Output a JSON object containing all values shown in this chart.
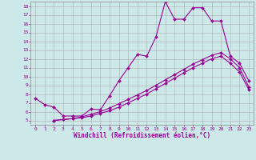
{
  "xlabel": "Windchill (Refroidissement éolien,°C)",
  "bg_color": "#cce8e8",
  "line_color": "#990099",
  "grid_color": "#aaaaaa",
  "xlim": [
    -0.5,
    23.5
  ],
  "ylim": [
    4.5,
    18.5
  ],
  "yticks": [
    5,
    6,
    7,
    8,
    9,
    10,
    11,
    12,
    13,
    14,
    15,
    16,
    17,
    18
  ],
  "xticks": [
    0,
    1,
    2,
    3,
    4,
    5,
    6,
    7,
    8,
    9,
    10,
    11,
    12,
    13,
    14,
    15,
    16,
    17,
    18,
    19,
    20,
    21,
    22,
    23
  ],
  "curve1_x": [
    0,
    1,
    2,
    3,
    4,
    5,
    6,
    7,
    8,
    9,
    10,
    11,
    12,
    13,
    14,
    15,
    16,
    17,
    18,
    19,
    20,
    21,
    22,
    23
  ],
  "curve1_y": [
    7.5,
    6.8,
    6.5,
    5.5,
    5.5,
    5.5,
    6.3,
    6.2,
    7.8,
    9.5,
    11.0,
    12.5,
    12.3,
    14.5,
    18.5,
    16.5,
    16.5,
    17.8,
    17.8,
    16.3,
    16.3,
    12.3,
    11.5,
    9.5
  ],
  "curve2_x": [
    2,
    3,
    4,
    5,
    6,
    7,
    8,
    9,
    10,
    11,
    12,
    13,
    14,
    15,
    16,
    17,
    18,
    19,
    20,
    21,
    22,
    23
  ],
  "curve2_y": [
    5.0,
    5.1,
    5.2,
    5.3,
    5.5,
    5.8,
    6.1,
    6.5,
    7.0,
    7.5,
    8.0,
    8.6,
    9.2,
    9.8,
    10.4,
    11.0,
    11.5,
    12.0,
    12.3,
    11.5,
    10.5,
    8.5
  ],
  "curve3_x": [
    2,
    3,
    4,
    5,
    6,
    7,
    8,
    9,
    10,
    11,
    12,
    13,
    14,
    15,
    16,
    17,
    18,
    19,
    20,
    21,
    22,
    23
  ],
  "curve3_y": [
    5.0,
    5.1,
    5.2,
    5.4,
    5.7,
    6.0,
    6.4,
    6.9,
    7.4,
    7.9,
    8.4,
    9.0,
    9.6,
    10.2,
    10.8,
    11.4,
    11.9,
    12.4,
    12.7,
    12.0,
    11.0,
    8.8
  ],
  "marker": "D",
  "markersize": 2.0,
  "linewidth": 0.8,
  "tick_fontsize": 4.5,
  "xlabel_fontsize": 5.5
}
